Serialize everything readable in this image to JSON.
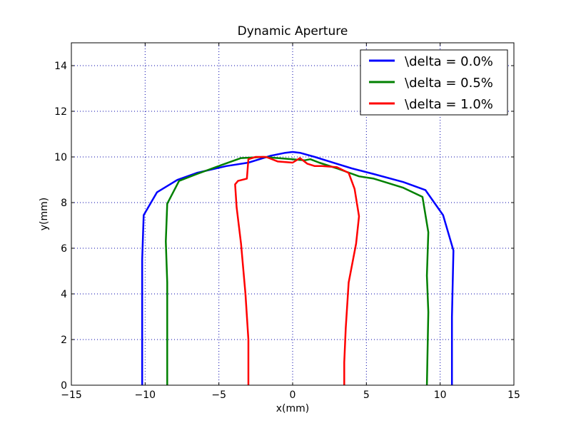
{
  "chart_data": {
    "type": "line",
    "title": "Dynamic Aperture",
    "xlabel": "x(mm)",
    "ylabel": "y(mm)",
    "xlim": [
      -15,
      15
    ],
    "ylim": [
      0,
      15
    ],
    "xticks": [
      -15,
      -10,
      -5,
      0,
      5,
      10,
      15
    ],
    "yticks": [
      0,
      2,
      4,
      6,
      8,
      10,
      12,
      14
    ],
    "xtick_labels": [
      "−15",
      "−10",
      "−5",
      "0",
      "5",
      "10",
      "15"
    ],
    "ytick_labels": [
      "0",
      "2",
      "4",
      "6",
      "8",
      "10",
      "12",
      "14"
    ],
    "grid": true,
    "legend_position": "top-right",
    "series": [
      {
        "name": "\\delta = 0.0%",
        "color": "#0000ff",
        "x": [
          -10.2,
          -10.2,
          -10.2,
          -10.1,
          -9.2,
          -7.8,
          -6.5,
          -4.5,
          -3.0,
          -1.5,
          -0.5,
          0,
          0.5,
          1.5,
          2.5,
          4.0,
          5.5,
          7.5,
          9.0,
          10.2,
          10.9,
          10.8,
          10.8
        ],
        "y": [
          0,
          3.0,
          5.5,
          7.45,
          8.45,
          9.0,
          9.3,
          9.6,
          9.75,
          10.05,
          10.18,
          10.22,
          10.18,
          10.0,
          9.8,
          9.5,
          9.25,
          8.9,
          8.55,
          7.45,
          5.9,
          3.0,
          0
        ]
      },
      {
        "name": "\\delta = 0.5%",
        "color": "#008000",
        "x": [
          -8.5,
          -8.5,
          -8.5,
          -8.6,
          -8.5,
          -7.7,
          -6.5,
          -4.8,
          -3.5,
          -2.0,
          -1.0,
          0,
          0.8,
          1.2,
          1.8,
          3.0,
          4.5,
          5.5,
          7.5,
          8.8,
          9.2,
          9.1,
          9.2,
          9.1
        ],
        "y": [
          0,
          2.0,
          4.5,
          6.3,
          7.95,
          8.95,
          9.25,
          9.65,
          9.95,
          10.0,
          9.95,
          9.9,
          9.85,
          9.9,
          9.75,
          9.5,
          9.15,
          9.05,
          8.65,
          8.25,
          6.7,
          4.8,
          3.2,
          0
        ]
      },
      {
        "name": "\\delta = 1.0%",
        "color": "#ff0000",
        "x": [
          -3.0,
          -3.0,
          -3.2,
          -3.5,
          -3.8,
          -3.9,
          -3.7,
          -3.1,
          -3.0,
          -2.5,
          -1.8,
          -1.0,
          0,
          0.5,
          1.0,
          1.5,
          2.0,
          3.0,
          3.8,
          4.2,
          4.5,
          4.3,
          3.8,
          3.6,
          3.5,
          3.5
        ],
        "y": [
          0,
          2.0,
          4.0,
          6.2,
          7.8,
          8.8,
          8.95,
          9.05,
          9.9,
          10.0,
          10.0,
          9.8,
          9.75,
          9.95,
          9.7,
          9.6,
          9.6,
          9.55,
          9.3,
          8.6,
          7.4,
          6.2,
          4.5,
          2.5,
          1.0,
          0
        ]
      }
    ]
  }
}
